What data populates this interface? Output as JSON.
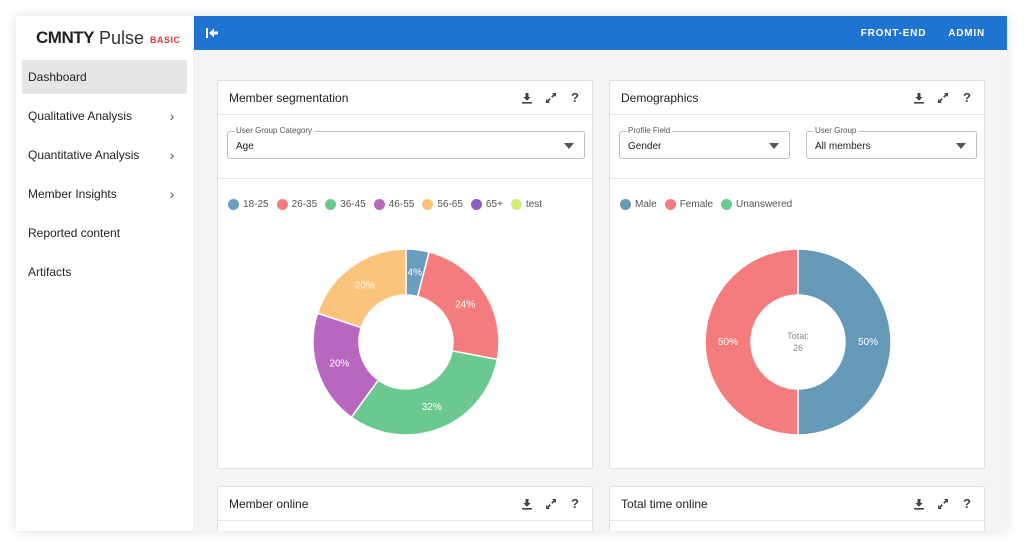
{
  "brand": {
    "name": "CMNTY",
    "product": "Pulse",
    "tier": "BASIC",
    "tier_color": "#e53935"
  },
  "topbar": {
    "color": "#1e74d0",
    "links": [
      "FRONT-END",
      "ADMIN"
    ]
  },
  "sidebar": {
    "items": [
      {
        "label": "Dashboard",
        "active": true,
        "expandable": false
      },
      {
        "label": "Qualitative Analysis",
        "active": false,
        "expandable": true
      },
      {
        "label": "Quantitative Analysis",
        "active": false,
        "expandable": true
      },
      {
        "label": "Member Insights",
        "active": false,
        "expandable": true
      },
      {
        "label": "Reported content",
        "active": false,
        "expandable": false
      },
      {
        "label": "Artifacts",
        "active": false,
        "expandable": false
      }
    ]
  },
  "cards": {
    "segmentation": {
      "title": "Member segmentation",
      "filter": {
        "label": "User Group Category",
        "value": "Age"
      }
    },
    "demographics": {
      "title": "Demographics",
      "filter1": {
        "label": "Profile Field",
        "value": "Gender"
      },
      "filter2": {
        "label": "User Group",
        "value": "All members"
      },
      "total_label": "Total:",
      "total_value": "26"
    },
    "online": {
      "title": "Member online"
    },
    "time_online": {
      "title": "Total time online"
    }
  },
  "chart_data": [
    {
      "type": "pie",
      "categories": [
        "18-25",
        "26-35",
        "36-45",
        "46-55",
        "56-65",
        "65+",
        "test"
      ],
      "values": [
        4,
        24,
        32,
        20,
        20,
        0,
        0
      ],
      "labels": [
        "4%",
        "24%",
        "32%",
        "20%",
        "20%",
        "",
        ""
      ],
      "colors": [
        "#6a9ec0",
        "#f47c7c",
        "#6cc891",
        "#b966bf",
        "#fbc47a",
        "#8e5cc4",
        "#d4ec7a"
      ],
      "donut": true
    },
    {
      "type": "pie",
      "categories": [
        "Male",
        "Female",
        "Unanswered"
      ],
      "values": [
        50,
        50,
        0
      ],
      "labels": [
        "50%",
        "50%",
        ""
      ],
      "colors": [
        "#6599b8",
        "#f47c7c",
        "#6cc891"
      ],
      "donut": true
    }
  ]
}
